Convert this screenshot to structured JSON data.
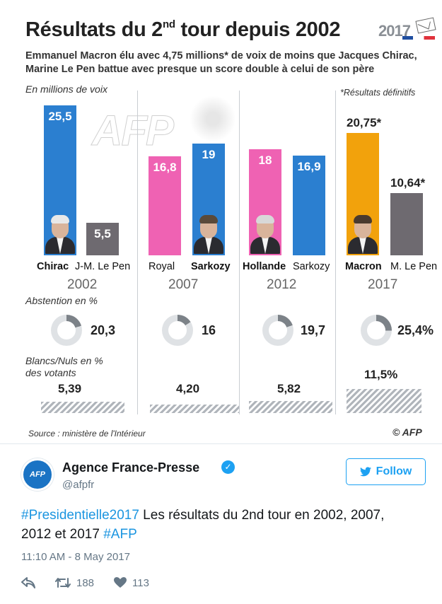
{
  "graphic": {
    "title_main": "Résultats du 2",
    "title_sup": "nd",
    "title_end": " tour depuis 2002",
    "logo_year": "2017",
    "subtitle_line1": "Emmanuel Macron élu avec 4,75 millions* de voix de moins que Jacques Chirac,",
    "subtitle_line2": "Marine Le Pen battue avec presque un score double à celui de son père",
    "unit_label": "En millions de voix",
    "note_label": "*Résultats définitifs",
    "abstention_label": "Abstention en %",
    "blancs_label_line1": "Blancs/Nuls en %",
    "blancs_label_line2": "des votants",
    "source": "Source : ministère de l'Intérieur",
    "credit": "© AFP",
    "watermark": "AFP",
    "colors": {
      "blue": "#2b7fd0",
      "pink": "#ef62b3",
      "gray": "#6e6a70",
      "orange": "#f2a20c"
    }
  },
  "chart_data": {
    "type": "bar",
    "title": "Résultats du 2nd tour depuis 2002",
    "ylabel": "En millions de voix",
    "ylim": [
      0,
      26
    ],
    "elections": [
      {
        "year": "2002",
        "abstention": 20.3,
        "abstention_label": "20,3",
        "blancs": 5.39,
        "blancs_label": "5,39",
        "candidates": [
          {
            "name": "Chirac",
            "value": 25.5,
            "label": "25,5",
            "color": "#2b7fd0",
            "winner": true
          },
          {
            "name": "J-M. Le Pen",
            "value": 5.5,
            "label": "5,5",
            "color": "#6e6a70",
            "winner": false
          }
        ]
      },
      {
        "year": "2007",
        "abstention": 16,
        "abstention_label": "16",
        "blancs": 4.2,
        "blancs_label": "4,20",
        "candidates": [
          {
            "name": "Royal",
            "value": 16.8,
            "label": "16,8",
            "color": "#ef62b3",
            "winner": false
          },
          {
            "name": "Sarkozy",
            "value": 19,
            "label": "19",
            "color": "#2b7fd0",
            "winner": true
          }
        ]
      },
      {
        "year": "2012",
        "abstention": 19.7,
        "abstention_label": "19,7",
        "blancs": 5.82,
        "blancs_label": "5,82",
        "candidates": [
          {
            "name": "Hollande",
            "value": 18,
            "label": "18",
            "color": "#ef62b3",
            "winner": true
          },
          {
            "name": "Sarkozy",
            "value": 16.9,
            "label": "16,9",
            "color": "#2b7fd0",
            "winner": false
          }
        ]
      },
      {
        "year": "2017",
        "abstention": 25.4,
        "abstention_label": "25,4%",
        "blancs": 11.5,
        "blancs_label": "11,5%",
        "candidates": [
          {
            "name": "Macron",
            "value": 20.75,
            "label": "20,75*",
            "color": "#f2a20c",
            "winner": true
          },
          {
            "name": "M. Le Pen",
            "value": 10.64,
            "label": "10,64*",
            "color": "#6e6a70",
            "winner": false
          }
        ]
      }
    ]
  },
  "tweet": {
    "avatar_text": "AFP",
    "display_name": "Agence France-Presse",
    "verified_mark": "✓",
    "handle": "@afpfr",
    "follow_label": "Follow",
    "text_hashtag1": "#Presidentielle2017",
    "text_body": " Les résultats du 2nd tour en 2002, 2007, 2012 et 2017 ",
    "text_hashtag2": "#AFP",
    "timestamp": "11:10 AM - 8 May 2017",
    "retweets": "188",
    "likes": "113",
    "accent": "#1da1f2"
  }
}
